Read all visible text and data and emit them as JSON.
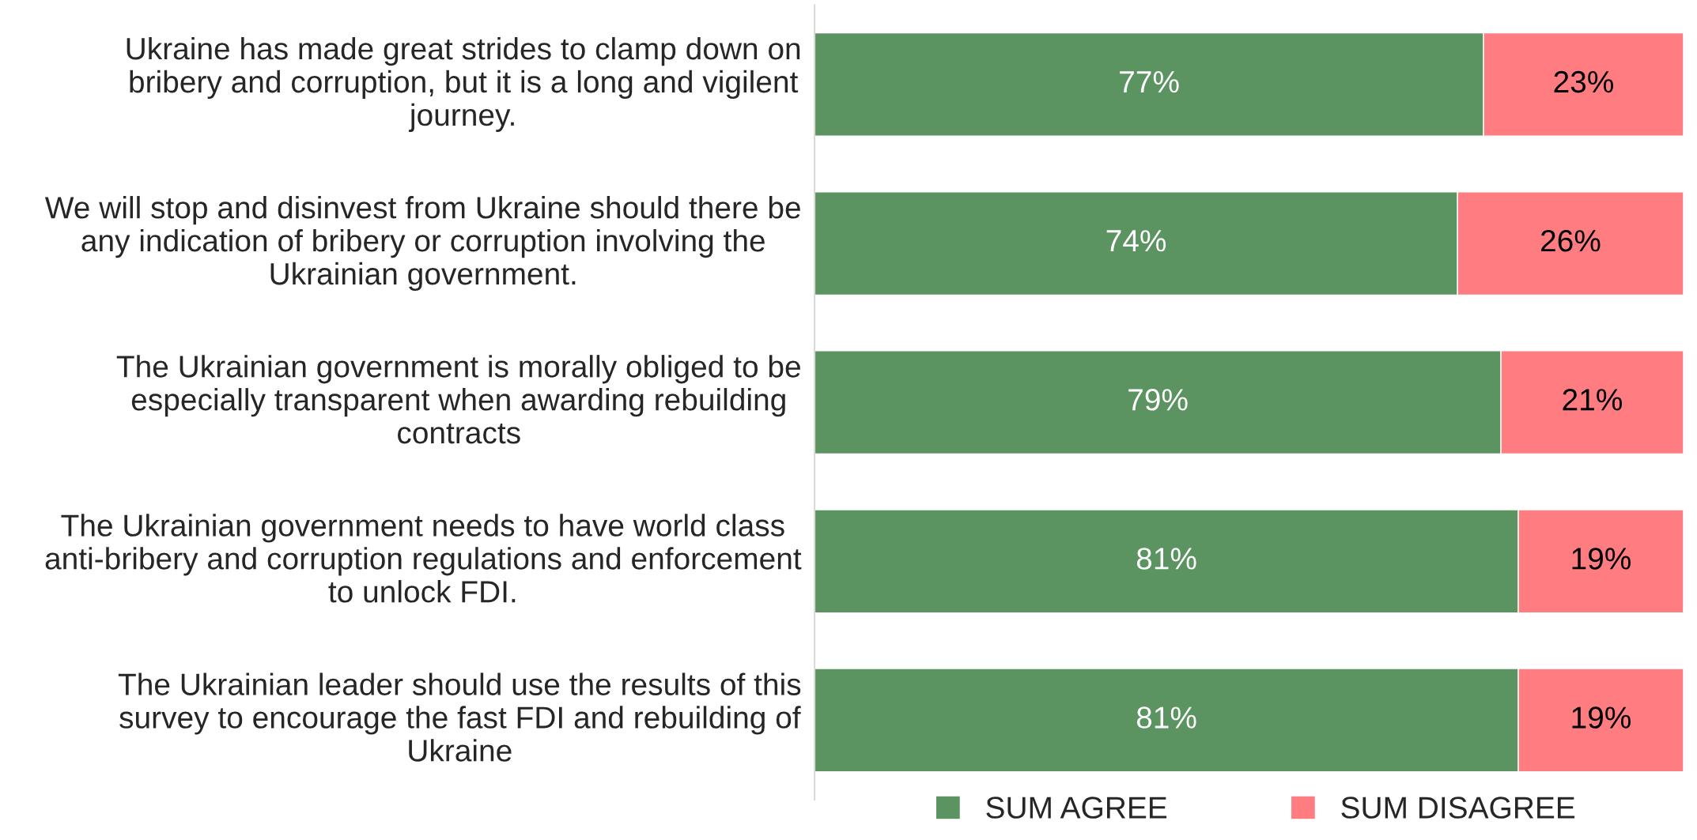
{
  "chart_data": {
    "type": "bar",
    "orientation": "horizontal",
    "stacked": true,
    "legend": "bottom",
    "categories": [
      "Ukraine has made great strides to clamp down on bribery and corruption, but it is a long and vigilent journey.",
      "We will stop and disinvest from Ukraine should there be any indication of bribery or corruption involving the Ukrainian government.",
      "The Ukrainian government is morally obliged to be especially transparent when awarding rebuilding contracts",
      "The Ukrainian government needs to have world class anti-bribery and corruption regulations and enforcement to unlock FDI.",
      "The Ukrainian leader should use the results of this survey to encourage the fast FDI and rebuilding of Ukraine"
    ],
    "series": [
      {
        "name": "SUM AGREE",
        "color": "#5b9361",
        "values": [
          77,
          74,
          79,
          81,
          81
        ],
        "value_labels": [
          "77%",
          "74%",
          "79%",
          "81%",
          "81%"
        ]
      },
      {
        "name": "SUM DISAGREE",
        "color": "#ff7c80",
        "values": [
          23,
          26,
          21,
          19,
          19
        ],
        "value_labels": [
          "23%",
          "26%",
          "21%",
          "19%",
          "19%"
        ]
      }
    ]
  }
}
